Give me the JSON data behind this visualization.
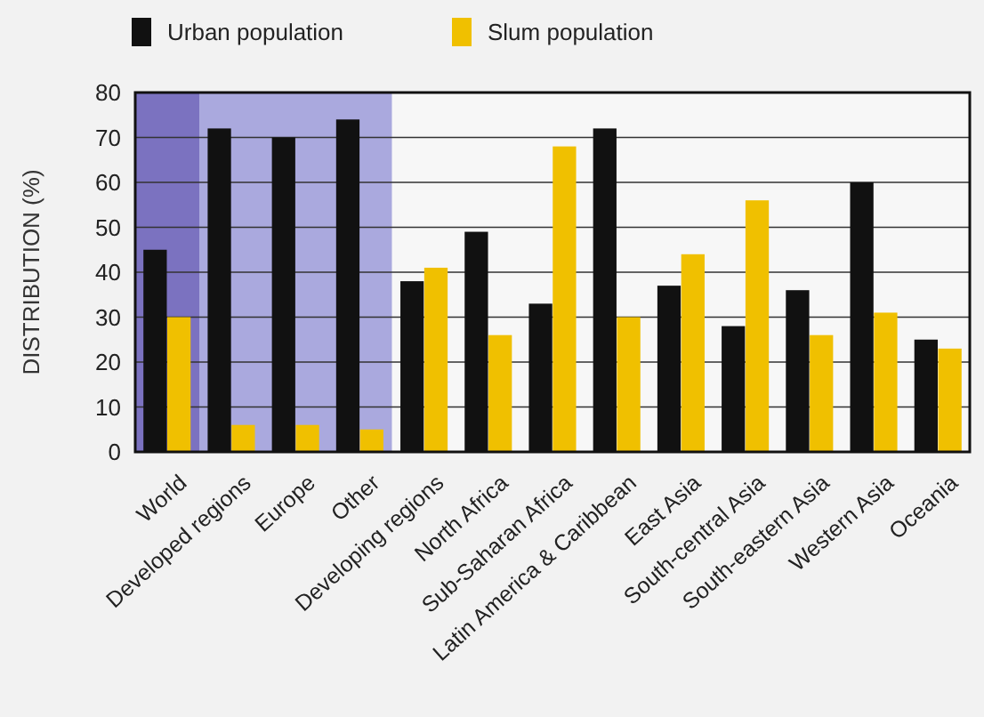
{
  "chart_data": {
    "type": "bar",
    "ylabel": "DISTRIBUTION (%)",
    "categories": [
      "World",
      "Developed regions",
      "Europe",
      "Other",
      "Developing regions",
      "North Africa",
      "Sub-Saharan Africa",
      "Latin America & Caribbean",
      "East Asia",
      "South-central Asia",
      "South-eastern Asia",
      "Western Asia",
      "Oceania"
    ],
    "series": [
      {
        "name": "Urban population",
        "color": "#111111",
        "values": [
          45,
          72,
          70,
          74,
          38,
          49,
          33,
          72,
          37,
          28,
          36,
          60,
          25
        ]
      },
      {
        "name": "Slum population",
        "color": "#f0c000",
        "values": [
          30,
          6,
          6,
          5,
          41,
          26,
          68,
          30,
          44,
          56,
          26,
          31,
          23
        ]
      }
    ],
    "ylim": [
      0,
      80
    ],
    "yticks": [
      0,
      10,
      20,
      30,
      40,
      50,
      60,
      70,
      80
    ],
    "grid": "y",
    "legend": "top left"
  }
}
